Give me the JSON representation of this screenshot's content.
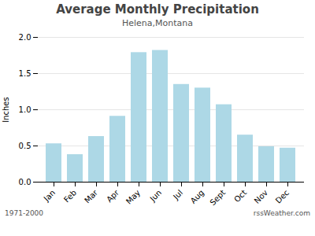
{
  "chart_data": {
    "type": "bar",
    "title": "Average Monthly Precipitation",
    "subtitle": "Helena,Montana",
    "ylabel": "Inches",
    "categories": [
      "Jan",
      "Feb",
      "Mar",
      "Apr",
      "May",
      "Jun",
      "Jul",
      "Aug",
      "Sept",
      "Oct",
      "Nov",
      "Dec"
    ],
    "values": [
      0.53,
      0.38,
      0.63,
      0.91,
      1.79,
      1.82,
      1.35,
      1.3,
      1.07,
      0.65,
      0.49,
      0.47
    ],
    "color": "#add8e6",
    "ylim": [
      0.0,
      2.0
    ],
    "yticks": [
      {
        "value": 0,
        "label": "0.0"
      },
      0.5,
      {
        "value": 1,
        "label": "1.0"
      },
      1.5,
      {
        "value": 2,
        "label": "2.0"
      }
    ],
    "grid": true,
    "annotations": [
      "1971-2000",
      "rssWeather.com"
    ]
  }
}
